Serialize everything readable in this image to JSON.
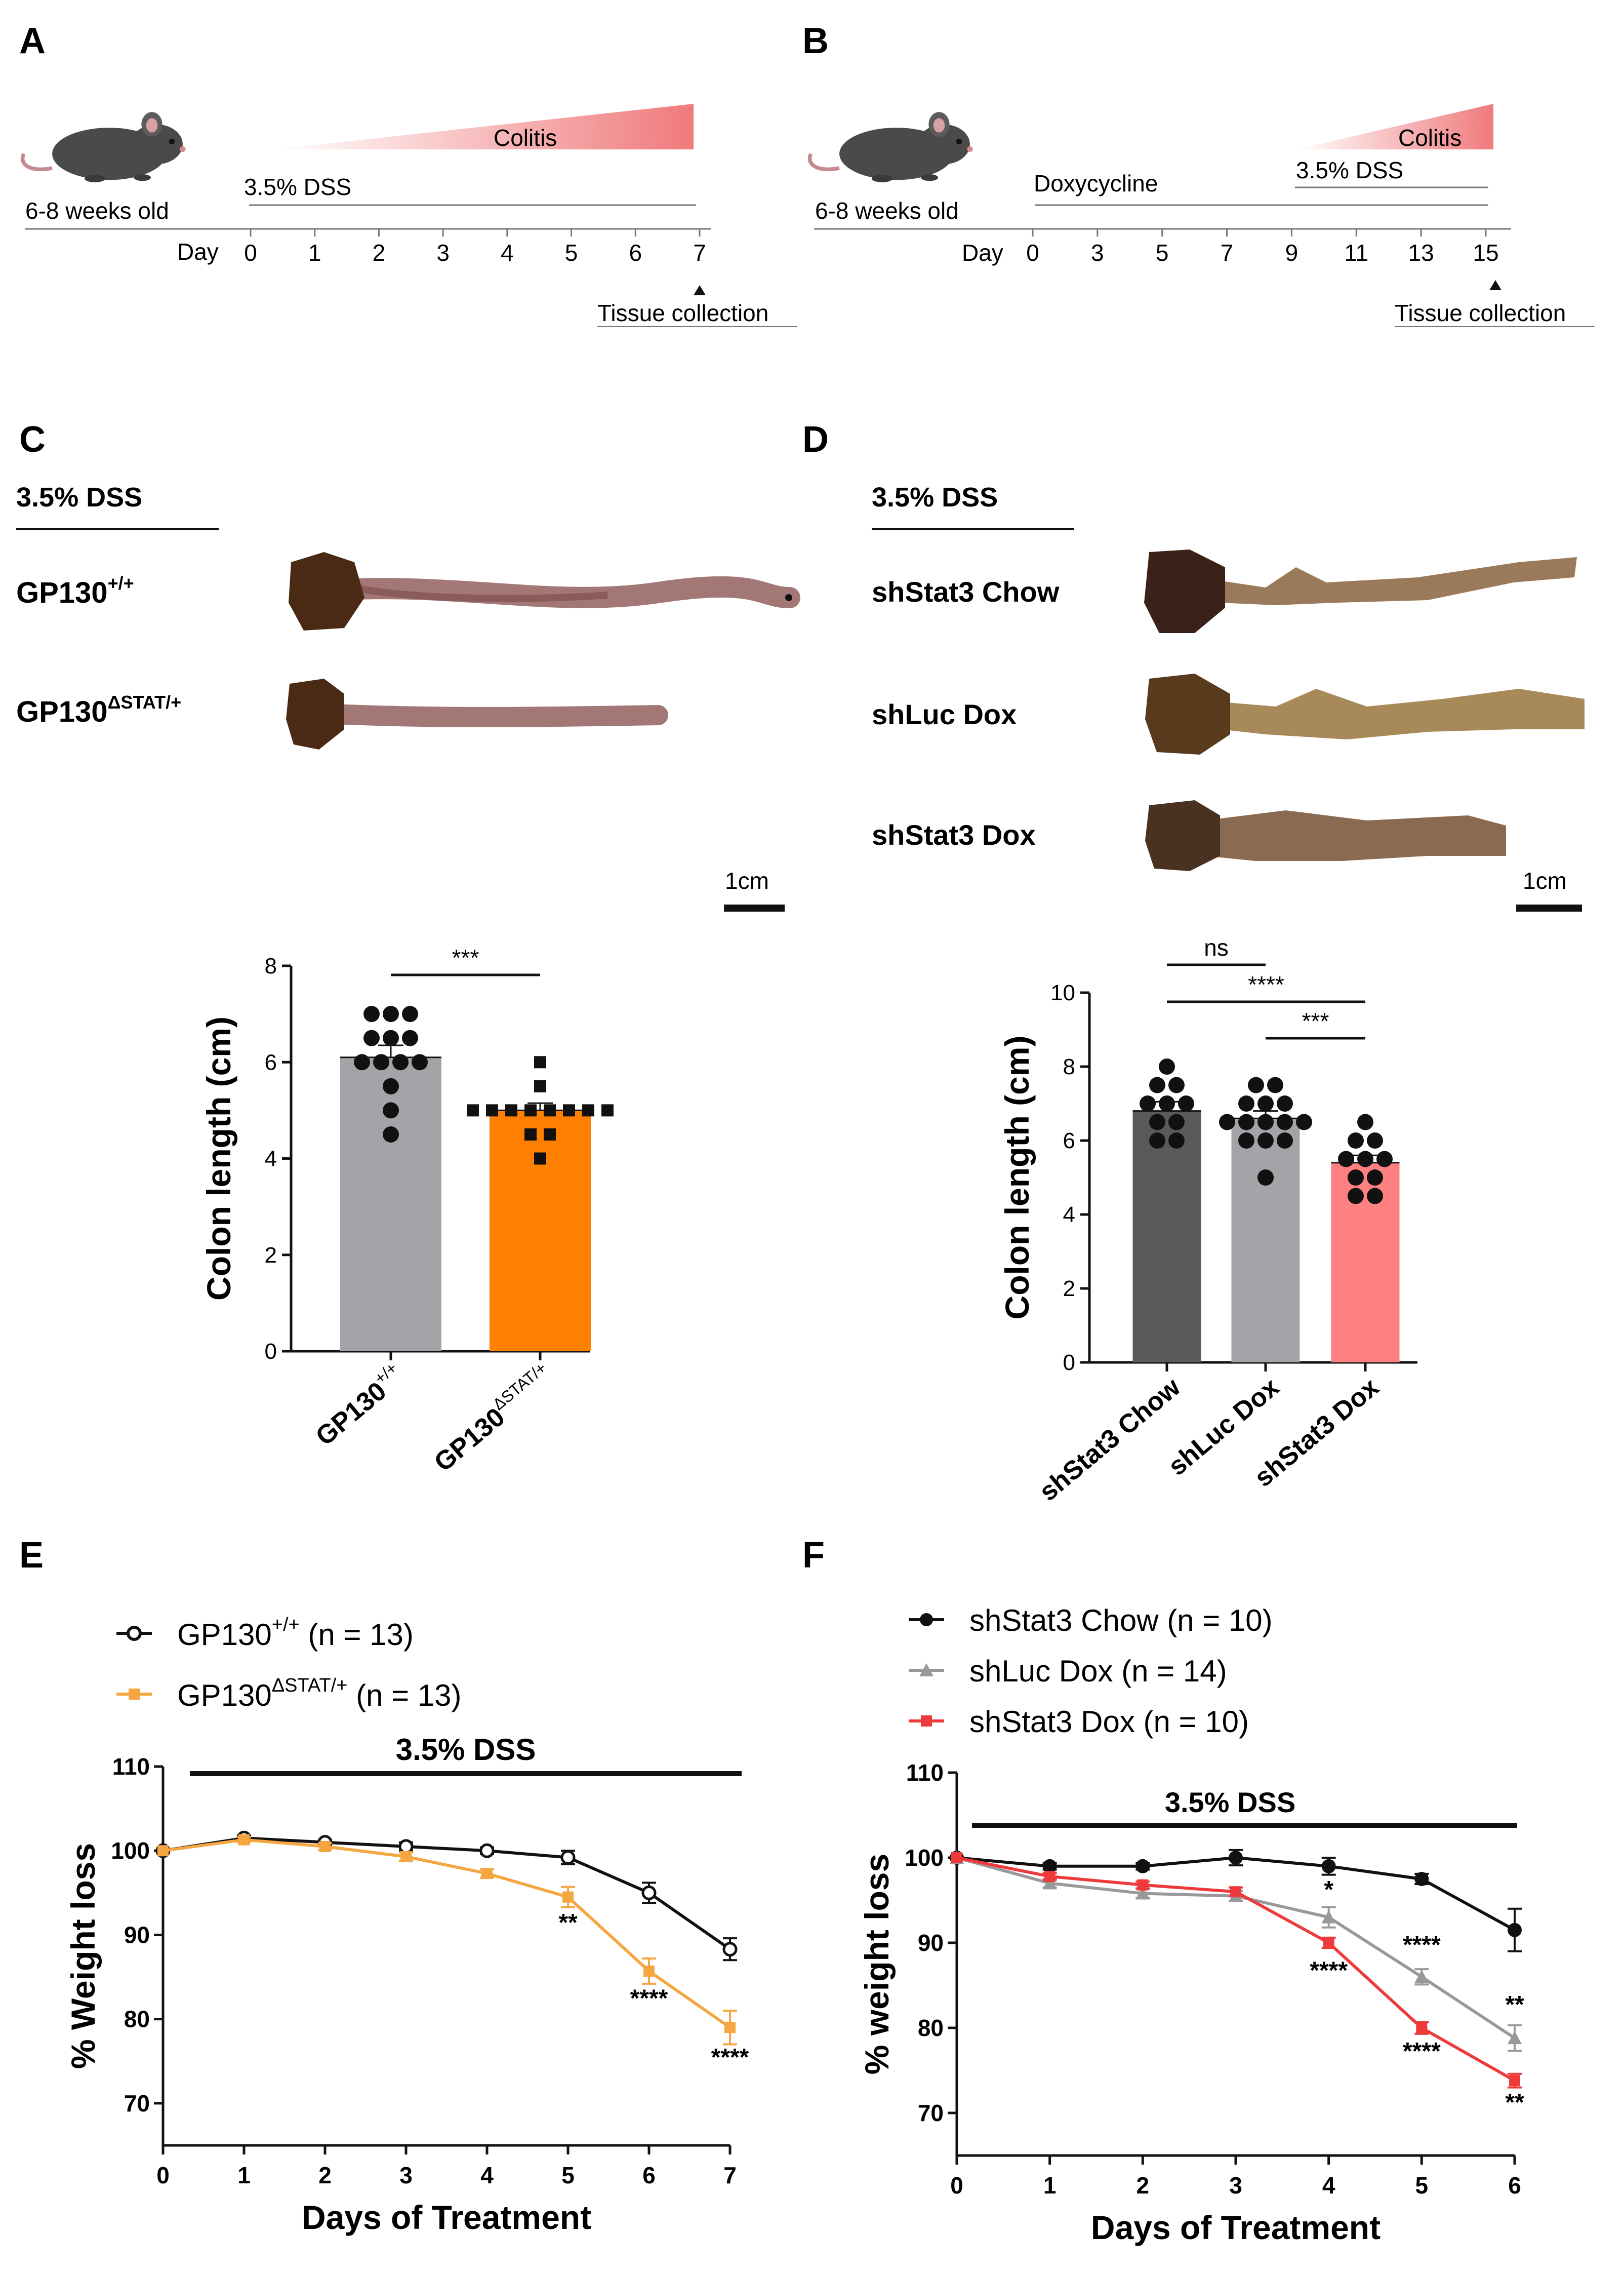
{
  "panels": {
    "A": {
      "label": "A",
      "age": "6-8 weeks old",
      "treatment": "3.5% DSS",
      "colitis": "Colitis",
      "day_label": "Day",
      "days": [
        "0",
        "1",
        "2",
        "3",
        "4",
        "5",
        "6",
        "7"
      ],
      "collection": "Tissue collection"
    },
    "B": {
      "label": "B",
      "age": "6-8 weeks old",
      "treatment1": "Doxycycline",
      "treatment2": "3.5% DSS",
      "colitis": "Colitis",
      "day_label": "Day",
      "days": [
        "0",
        "3",
        "5",
        "7",
        "9",
        "11",
        "13",
        "15"
      ],
      "collection": "Tissue collection"
    },
    "C": {
      "label": "C",
      "header": "3.5% DSS",
      "row1": "GP130",
      "row1_sup": "+/+",
      "row2": "GP130",
      "row2_sup": "ΔSTAT/+",
      "scale": "1cm"
    },
    "D": {
      "label": "D",
      "header": "3.5% DSS",
      "row1": "shStat3 Chow",
      "row2": "shLuc Dox",
      "row3": "shStat3 Dox",
      "scale": "1cm"
    },
    "E": {
      "label": "E",
      "legend": [
        {
          "base": "GP130",
          "sup": "+/+",
          "tail": " (n = 13)"
        },
        {
          "base": "GP130",
          "sup": "ΔSTAT/+",
          "tail": " (n = 13)"
        }
      ],
      "bar_label": "3.5% DSS"
    },
    "F": {
      "label": "F",
      "legend": [
        "shStat3 Chow (n = 10)",
        "shLuc Dox (n = 14)",
        "shStat3 Dox (n = 10)"
      ],
      "bar_label": "3.5% DSS"
    }
  },
  "chart_data": [
    {
      "id": "C-bar",
      "type": "bar",
      "ylabel": "Colon length (cm)",
      "ylim": [
        0,
        8
      ],
      "yticks": [
        "0",
        "2",
        "4",
        "6",
        "8"
      ],
      "categories": [
        {
          "base": "GP130",
          "sup": "+/+"
        },
        {
          "base": "GP130",
          "sup": "ΔSTAT/+"
        }
      ],
      "values": [
        6.1,
        5.0
      ],
      "errors": [
        0.25,
        0.15
      ],
      "colors": [
        "#a4a4a8",
        "#ff8000"
      ],
      "points": [
        [
          7.0,
          7.0,
          7.0,
          6.5,
          6.5,
          6.5,
          6.0,
          6.0,
          6.0,
          6.0,
          5.5,
          5.0,
          4.5
        ],
        [
          6.0,
          5.5,
          5.0,
          5.0,
          5.0,
          5.0,
          5.0,
          5.0,
          5.0,
          5.0,
          4.5,
          4.5,
          4.0
        ]
      ],
      "markers": [
        "circle",
        "square"
      ],
      "significance": [
        {
          "from": 0,
          "to": 1,
          "label": "***"
        }
      ]
    },
    {
      "id": "D-bar",
      "type": "bar",
      "ylabel": "Colon length (cm)",
      "ylim": [
        0,
        10
      ],
      "yticks": [
        "0",
        "2",
        "4",
        "6",
        "8",
        "10"
      ],
      "categories": [
        "shStat3 Chow",
        "shLuc Dox",
        "shStat3 Dox"
      ],
      "values": [
        6.8,
        6.6,
        5.4
      ],
      "errors": [
        0.25,
        0.2,
        0.2
      ],
      "colors": [
        "#5a5a5c",
        "#a4a4a8",
        "#ff8080"
      ],
      "points": [
        [
          8.0,
          7.5,
          7.5,
          7.0,
          7.0,
          7.0,
          6.5,
          6.5,
          6.0,
          6.0
        ],
        [
          7.5,
          7.5,
          7.0,
          7.0,
          7.0,
          6.5,
          6.5,
          6.5,
          6.5,
          6.5,
          6.0,
          6.0,
          6.0,
          5.0
        ],
        [
          6.5,
          6.0,
          6.0,
          5.5,
          5.5,
          5.5,
          5.0,
          5.0,
          4.5,
          4.5
        ]
      ],
      "markers": [
        "circle",
        "circle",
        "circle"
      ],
      "significance": [
        {
          "from": 0,
          "to": 1,
          "label": "ns"
        },
        {
          "from": 0,
          "to": 2,
          "label": "****"
        },
        {
          "from": 1,
          "to": 2,
          "label": "***"
        }
      ]
    },
    {
      "id": "E-line",
      "type": "line",
      "xlabel": "Days of Treatment",
      "ylabel": "% Weight loss",
      "xlim": [
        0,
        7
      ],
      "ylim": [
        65,
        110
      ],
      "xticks": [
        "0",
        "1",
        "2",
        "3",
        "4",
        "5",
        "6",
        "7"
      ],
      "yticks": [
        "70",
        "80",
        "90",
        "100",
        "110"
      ],
      "x": [
        0,
        1,
        2,
        3,
        4,
        5,
        6,
        7
      ],
      "series": [
        {
          "values": [
            100,
            101.5,
            101,
            100.5,
            100,
            99.2,
            95,
            88.3
          ],
          "errors": [
            0,
            0.3,
            0.3,
            0.5,
            0.4,
            0.8,
            1.2,
            1.3
          ],
          "color": "#111111",
          "marker": "open-circle"
        },
        {
          "values": [
            100,
            101.3,
            100.5,
            99.3,
            97.3,
            94.5,
            85.7,
            79
          ],
          "errors": [
            0,
            0.3,
            0.4,
            0.5,
            0.5,
            1.2,
            1.5,
            2.0
          ],
          "color": "#f5a640",
          "marker": "square"
        }
      ],
      "annotations": [
        {
          "x": 5,
          "y": 90.5,
          "label": "**"
        },
        {
          "x": 6,
          "y": 81.5,
          "label": "****"
        },
        {
          "x": 7,
          "y": 74.5,
          "label": "****"
        }
      ]
    },
    {
      "id": "F-line",
      "type": "line",
      "xlabel": "Days of Treatment",
      "ylabel": "% weight loss",
      "xlim": [
        0,
        6
      ],
      "ylim": [
        65,
        110
      ],
      "xticks": [
        "0",
        "1",
        "2",
        "3",
        "4",
        "5",
        "6"
      ],
      "yticks": [
        "70",
        "80",
        "90",
        "100",
        "110"
      ],
      "x": [
        0,
        1,
        2,
        3,
        4,
        5,
        6
      ],
      "series": [
        {
          "values": [
            100,
            99,
            99,
            100,
            99,
            97.5,
            91.5
          ],
          "errors": [
            0,
            0.4,
            0.4,
            0.9,
            1.0,
            0.6,
            2.5
          ],
          "color": "#111111",
          "marker": "circle"
        },
        {
          "values": [
            100,
            97,
            95.8,
            95.5,
            93,
            86,
            78.8
          ],
          "errors": [
            0,
            0.5,
            0.5,
            0.6,
            1.2,
            0.9,
            1.5
          ],
          "color": "#999999",
          "marker": "triangle"
        },
        {
          "values": [
            100,
            97.8,
            96.8,
            96,
            90,
            80,
            73.8
          ],
          "errors": [
            0,
            0.4,
            0.4,
            0.5,
            0.6,
            0.7,
            0.8
          ],
          "color": "#ee3a3a",
          "marker": "square"
        }
      ],
      "annotations": [
        {
          "x": 4,
          "y": 95.3,
          "label": "*"
        },
        {
          "x": 5,
          "y": 88.8,
          "label": "****"
        },
        {
          "x": 6,
          "y": 81.8,
          "label": "**"
        },
        {
          "x": 4,
          "y": 85.8,
          "label": "****"
        },
        {
          "x": 5,
          "y": 76.3,
          "label": "****"
        },
        {
          "x": 6,
          "y": 70.3,
          "label": "**"
        }
      ]
    }
  ]
}
